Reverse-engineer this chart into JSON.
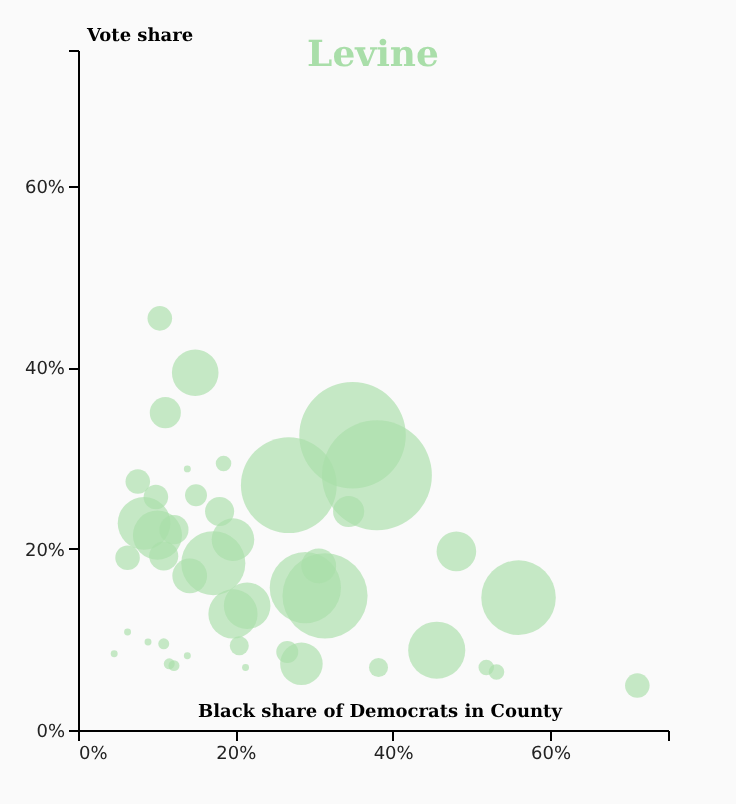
{
  "chart_data": {
    "type": "bubble",
    "title": "Levine",
    "xlabel": "Black share of Democrats in County",
    "ylabel": "Vote share",
    "x": [
      10.4,
      14.9,
      11.1,
      26.8,
      34.9,
      38.0,
      48.1,
      56.0,
      45.6,
      38.2,
      51.9,
      53.2,
      71.1,
      28.4,
      26.6,
      31.4,
      28.9,
      30.6,
      21.5,
      19.7,
      17.2,
      19.7,
      14.2,
      10.1,
      8.4,
      7.6,
      9.9,
      15.0,
      18.5,
      13.9,
      18.0,
      6.3,
      10.9,
      34.4,
      4.6,
      6.3,
      8.9,
      10.9,
      11.6,
      12.2,
      13.9,
      21.3,
      20.5,
      12.2
    ],
    "values": [
      45.4,
      39.4,
      35.0,
      27.0,
      32.5,
      28.1,
      19.7,
      14.6,
      8.8,
      6.9,
      6.9,
      6.4,
      4.9,
      7.3,
      8.6,
      14.8,
      15.7,
      18.1,
      13.7,
      12.8,
      18.4,
      21.0,
      17.0,
      21.5,
      22.8,
      27.4,
      25.7,
      25.9,
      29.4,
      28.8,
      24.1,
      19.0,
      19.2,
      24.1,
      8.4,
      10.8,
      9.7,
      9.5,
      7.3,
      7.1,
      8.2,
      6.9,
      9.3,
      22.1
    ],
    "sizes": [
      0.05,
      0.18,
      0.08,
      0.76,
      0.94,
      1.0,
      0.13,
      0.46,
      0.27,
      0.03,
      0.02,
      0.02,
      0.05,
      0.15,
      0.04,
      0.6,
      0.42,
      0.1,
      0.18,
      0.2,
      0.34,
      0.15,
      0.1,
      0.2,
      0.23,
      0.05,
      0.05,
      0.04,
      0.02,
      0.004,
      0.07,
      0.05,
      0.07,
      0.08,
      0.004,
      0.004,
      0.004,
      0.01,
      0.01,
      0.01,
      0.004,
      0.004,
      0.03,
      0.07
    ],
    "color": "#a9dea9",
    "xlim": [
      0,
      75
    ],
    "xticks": [
      {
        "value": 0,
        "label": "0%"
      },
      {
        "value": 20,
        "label": "20%"
      },
      {
        "value": 40,
        "label": "40%"
      },
      {
        "value": 60,
        "label": "60%"
      },
      {
        "value": 75,
        "label": null
      }
    ],
    "ylim": [
      0,
      75
    ],
    "yticks": [
      {
        "value": 0,
        "label": "0%"
      },
      {
        "value": 20,
        "label": "20%"
      },
      {
        "value": 40,
        "label": "40%"
      },
      {
        "value": 60,
        "label": "60%"
      },
      {
        "value": 75,
        "label": null
      }
    ],
    "grid": false,
    "legend": false
  }
}
